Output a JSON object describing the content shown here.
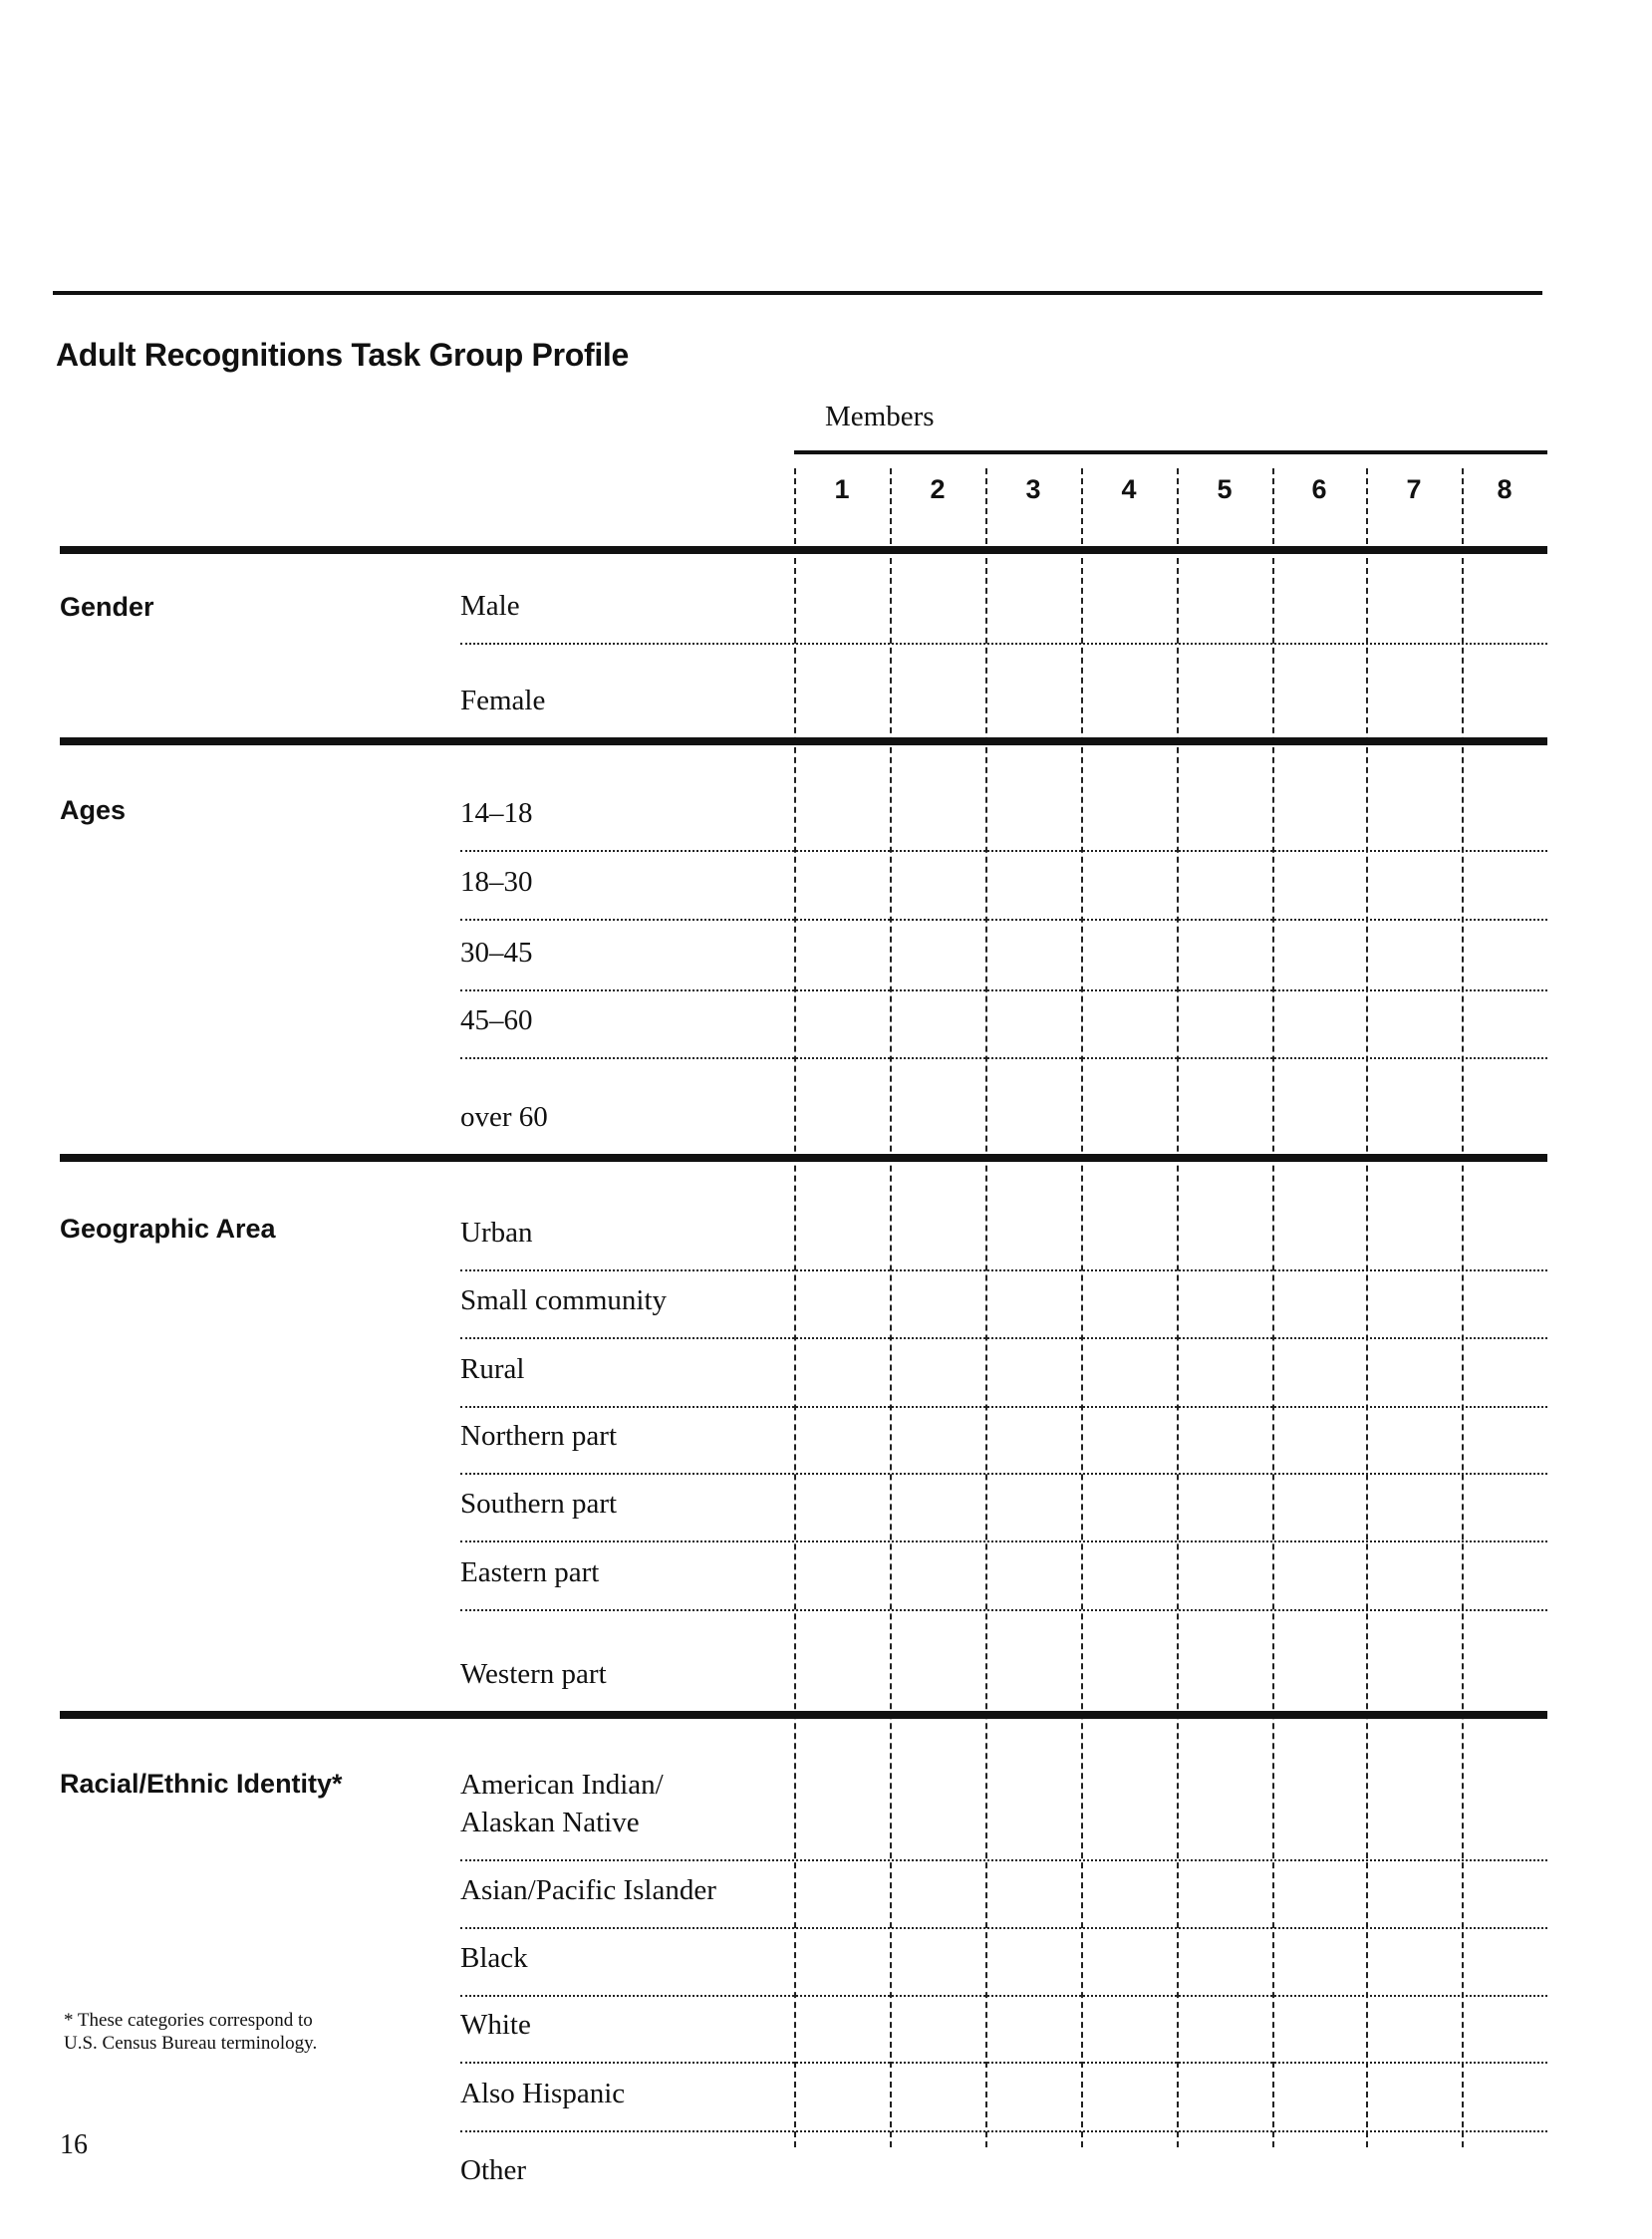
{
  "title": "Adult Recognitions Task Group Profile",
  "members_label": "Members",
  "columns": [
    "1",
    "2",
    "3",
    "4",
    "5",
    "6",
    "7",
    "8"
  ],
  "sections": [
    {
      "heading": "Gender",
      "rows": [
        "Male",
        "Female"
      ]
    },
    {
      "heading": "Ages",
      "rows": [
        "14–18",
        "18–30",
        "30–45",
        "45–60",
        "over 60"
      ]
    },
    {
      "heading": "Geographic Area",
      "rows": [
        "Urban",
        "Small community",
        "Rural",
        "Northern part",
        "Southern part",
        "Eastern part",
        "Western part"
      ]
    },
    {
      "heading": "Racial/Ethnic Identity*",
      "rows": [
        "American Indian/\nAlaskan Native",
        "Asian/Pacific Islander",
        "Black",
        "White",
        "Also Hispanic",
        "Other"
      ]
    }
  ],
  "footnote": [
    "* These categories correspond to",
    "U.S. Census Bureau terminology."
  ],
  "page_number": "16"
}
